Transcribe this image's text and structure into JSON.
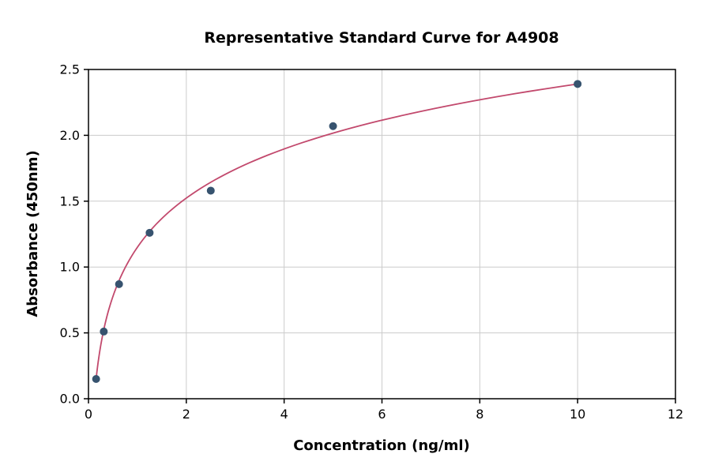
{
  "chart_data": {
    "type": "scatter",
    "title": "Representative Standard Curve for A4908",
    "xlabel": "Concentration (ng/ml)",
    "ylabel": "Absorbance (450nm)",
    "xlim": [
      0,
      12
    ],
    "ylim": [
      0,
      2.5
    ],
    "x_ticks": [
      0,
      2,
      4,
      6,
      8,
      10,
      12
    ],
    "x_tick_labels": [
      "0",
      "2",
      "4",
      "6",
      "8",
      "10",
      "12"
    ],
    "y_ticks": [
      0.0,
      0.5,
      1.0,
      1.5,
      2.0,
      2.5
    ],
    "y_tick_labels": [
      "0.0",
      "0.5",
      "1.0",
      "1.5",
      "2.0",
      "2.5"
    ],
    "grid": true,
    "legend": "none",
    "points": {
      "x": [
        0.156,
        0.3125,
        0.625,
        1.25,
        2.5,
        5,
        10
      ],
      "y": [
        0.15,
        0.51,
        0.87,
        1.26,
        1.58,
        2.07,
        2.39
      ]
    },
    "curve": {
      "type": "logarithmic-fit",
      "x_start": 0.156,
      "x_end": 10
    },
    "colors": {
      "point": "#37536f",
      "curve": "#c2496d",
      "grid": "#cccccc",
      "spine": "#000000",
      "background": "#ffffff"
    }
  }
}
